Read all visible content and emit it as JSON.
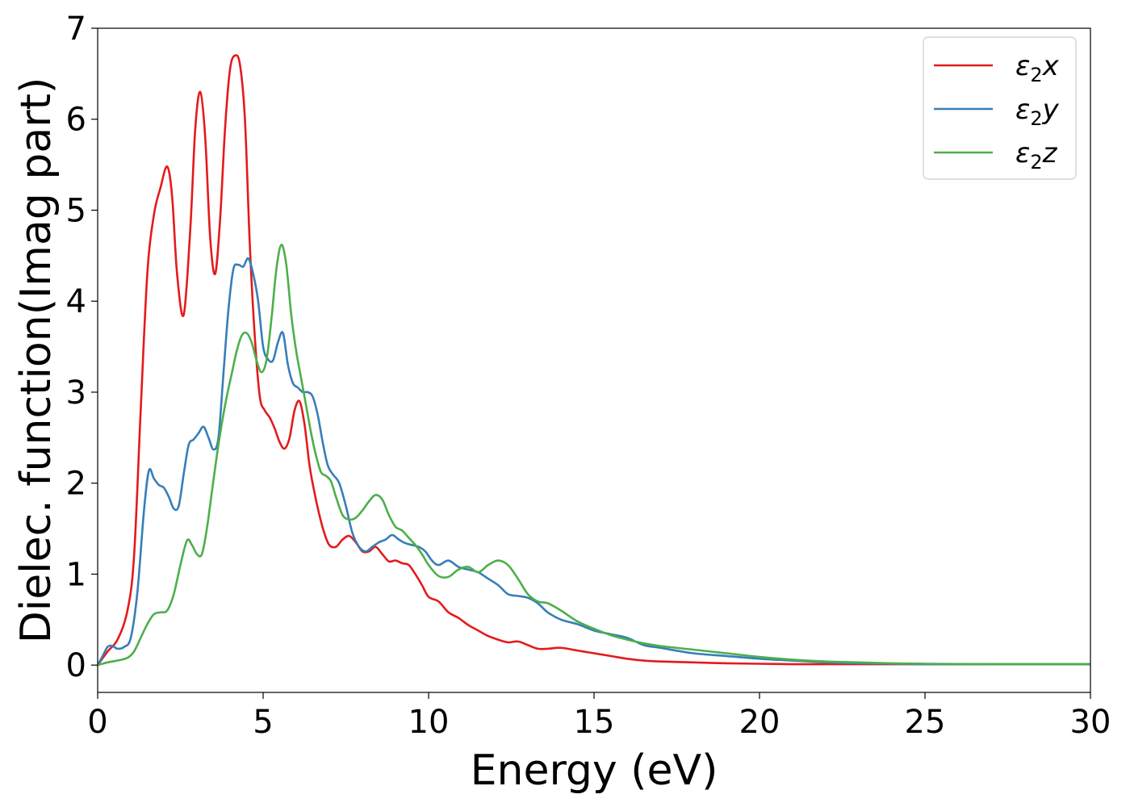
{
  "chart_data": {
    "type": "line",
    "xlabel": "Energy (eV)",
    "ylabel": "Dielec. function(Imag part)",
    "xlim": [
      0,
      30
    ],
    "ylim": [
      -0.3,
      7.0
    ],
    "xticks": [
      0,
      5,
      10,
      15,
      20,
      25,
      30
    ],
    "xtick_labels": [
      "0",
      "5",
      "10",
      "15",
      "20",
      "25",
      "30"
    ],
    "yticks": [
      0,
      1,
      2,
      3,
      4,
      5,
      6,
      7
    ],
    "ytick_labels": [
      "0",
      "1",
      "2",
      "3",
      "4",
      "5",
      "6",
      "7"
    ],
    "grid": false,
    "legend_position": "top-right",
    "series": [
      {
        "name": "ε2x",
        "legend": {
          "base": "ε",
          "sub": "2",
          "suffix": "x"
        },
        "color": "#e41a1c",
        "x": [
          0,
          0.3,
          0.6,
          0.9,
          1.1,
          1.3,
          1.5,
          1.7,
          1.9,
          2.1,
          2.25,
          2.4,
          2.6,
          2.8,
          2.95,
          3.1,
          3.25,
          3.4,
          3.55,
          3.7,
          3.85,
          4.0,
          4.15,
          4.3,
          4.45,
          4.6,
          4.75,
          4.9,
          5.05,
          5.2,
          5.35,
          5.5,
          5.65,
          5.8,
          5.95,
          6.1,
          6.25,
          6.4,
          6.55,
          6.7,
          6.85,
          7.0,
          7.2,
          7.4,
          7.6,
          7.8,
          8.0,
          8.2,
          8.4,
          8.6,
          8.8,
          9.0,
          9.2,
          9.4,
          9.6,
          9.8,
          10.0,
          10.3,
          10.6,
          10.9,
          11.2,
          11.5,
          11.8,
          12.1,
          12.4,
          12.7,
          13.0,
          13.3,
          13.6,
          14.0,
          14.5,
          15.0,
          15.5,
          16.0,
          16.5,
          17.0,
          18.0,
          19.0,
          20.0,
          21.0,
          22.0,
          23.0,
          24.0,
          25.0,
          27.0,
          30.0
        ],
        "y": [
          0,
          0.15,
          0.28,
          0.6,
          1.2,
          2.8,
          4.3,
          4.95,
          5.25,
          5.48,
          5.15,
          4.3,
          3.85,
          4.8,
          5.9,
          6.3,
          5.8,
          4.7,
          4.3,
          4.9,
          5.9,
          6.55,
          6.7,
          6.6,
          6.0,
          4.6,
          3.6,
          2.95,
          2.8,
          2.72,
          2.6,
          2.45,
          2.38,
          2.5,
          2.8,
          2.9,
          2.65,
          2.2,
          1.9,
          1.65,
          1.45,
          1.32,
          1.3,
          1.38,
          1.42,
          1.35,
          1.25,
          1.25,
          1.3,
          1.22,
          1.14,
          1.15,
          1.12,
          1.1,
          1.0,
          0.88,
          0.75,
          0.7,
          0.58,
          0.52,
          0.44,
          0.38,
          0.32,
          0.28,
          0.25,
          0.26,
          0.22,
          0.18,
          0.18,
          0.19,
          0.16,
          0.13,
          0.1,
          0.07,
          0.05,
          0.04,
          0.03,
          0.02,
          0.015,
          0.01,
          0.01,
          0.01,
          0.01,
          0.01,
          0.01,
          0.01
        ]
      },
      {
        "name": "ε2y",
        "legend": {
          "base": "ε",
          "sub": "2",
          "suffix": "y"
        },
        "color": "#377eb8",
        "x": [
          0,
          0.15,
          0.3,
          0.45,
          0.6,
          0.8,
          1.0,
          1.2,
          1.4,
          1.55,
          1.7,
          1.85,
          2.0,
          2.15,
          2.3,
          2.45,
          2.6,
          2.75,
          2.9,
          3.05,
          3.2,
          3.35,
          3.5,
          3.65,
          3.8,
          3.95,
          4.1,
          4.25,
          4.4,
          4.55,
          4.7,
          4.85,
          5.0,
          5.15,
          5.3,
          5.45,
          5.6,
          5.75,
          5.9,
          6.05,
          6.2,
          6.35,
          6.5,
          6.65,
          6.8,
          6.95,
          7.1,
          7.3,
          7.5,
          7.7,
          7.9,
          8.1,
          8.3,
          8.5,
          8.7,
          8.9,
          9.1,
          9.3,
          9.5,
          9.7,
          9.9,
          10.1,
          10.3,
          10.6,
          10.9,
          11.2,
          11.5,
          11.8,
          12.1,
          12.4,
          12.7,
          13.0,
          13.3,
          13.6,
          14.0,
          14.5,
          15.0,
          15.5,
          16.0,
          16.5,
          17.0,
          18.0,
          19.0,
          20.0,
          21.0,
          22.0,
          23.0,
          24.0,
          25.0,
          27.0,
          30.0
        ],
        "y": [
          0,
          0.1,
          0.2,
          0.21,
          0.18,
          0.2,
          0.3,
          0.8,
          1.7,
          2.14,
          2.05,
          1.98,
          1.95,
          1.85,
          1.72,
          1.75,
          2.1,
          2.42,
          2.48,
          2.55,
          2.62,
          2.5,
          2.37,
          2.5,
          3.2,
          3.9,
          4.35,
          4.4,
          4.38,
          4.47,
          4.3,
          4.0,
          3.5,
          3.36,
          3.35,
          3.55,
          3.65,
          3.3,
          3.1,
          3.05,
          3.0,
          3.0,
          2.95,
          2.75,
          2.45,
          2.2,
          2.1,
          2.0,
          1.75,
          1.45,
          1.3,
          1.25,
          1.3,
          1.35,
          1.38,
          1.43,
          1.38,
          1.34,
          1.32,
          1.3,
          1.25,
          1.15,
          1.1,
          1.15,
          1.08,
          1.05,
          1.02,
          0.95,
          0.88,
          0.78,
          0.76,
          0.74,
          0.68,
          0.58,
          0.5,
          0.45,
          0.38,
          0.34,
          0.3,
          0.22,
          0.19,
          0.13,
          0.1,
          0.07,
          0.05,
          0.03,
          0.02,
          0.015,
          0.01,
          0.01,
          0.01
        ]
      },
      {
        "name": "ε2z",
        "legend": {
          "base": "ε",
          "sub": "2",
          "suffix": "z"
        },
        "color": "#4daf4a",
        "x": [
          0,
          0.3,
          0.6,
          0.9,
          1.1,
          1.3,
          1.5,
          1.7,
          1.9,
          2.1,
          2.3,
          2.5,
          2.7,
          2.85,
          3.0,
          3.15,
          3.3,
          3.45,
          3.6,
          3.75,
          3.9,
          4.05,
          4.2,
          4.35,
          4.5,
          4.65,
          4.8,
          4.95,
          5.1,
          5.25,
          5.4,
          5.55,
          5.7,
          5.85,
          6.0,
          6.15,
          6.3,
          6.45,
          6.6,
          6.75,
          6.9,
          7.05,
          7.2,
          7.4,
          7.6,
          7.8,
          8.0,
          8.2,
          8.4,
          8.6,
          8.8,
          9.0,
          9.2,
          9.4,
          9.6,
          9.8,
          10.0,
          10.3,
          10.6,
          10.9,
          11.2,
          11.5,
          11.8,
          12.1,
          12.4,
          12.7,
          13.0,
          13.3,
          13.6,
          14.0,
          14.5,
          15.0,
          15.5,
          16.0,
          16.5,
          17.0,
          18.0,
          19.0,
          20.0,
          21.0,
          22.0,
          23.0,
          24.0,
          25.0,
          27.0,
          30.0
        ],
        "y": [
          0,
          0.03,
          0.05,
          0.08,
          0.15,
          0.3,
          0.45,
          0.56,
          0.58,
          0.6,
          0.78,
          1.1,
          1.37,
          1.32,
          1.22,
          1.22,
          1.5,
          1.9,
          2.3,
          2.65,
          2.95,
          3.2,
          3.45,
          3.62,
          3.65,
          3.55,
          3.35,
          3.22,
          3.35,
          3.8,
          4.35,
          4.62,
          4.4,
          3.85,
          3.45,
          3.15,
          2.85,
          2.55,
          2.3,
          2.12,
          2.08,
          2.02,
          1.85,
          1.65,
          1.6,
          1.62,
          1.7,
          1.8,
          1.87,
          1.82,
          1.65,
          1.52,
          1.48,
          1.4,
          1.32,
          1.22,
          1.1,
          0.98,
          0.97,
          1.05,
          1.08,
          1.02,
          1.1,
          1.15,
          1.1,
          0.95,
          0.78,
          0.7,
          0.68,
          0.6,
          0.48,
          0.4,
          0.33,
          0.28,
          0.24,
          0.21,
          0.17,
          0.13,
          0.09,
          0.06,
          0.04,
          0.03,
          0.02,
          0.015,
          0.01,
          0.01
        ]
      }
    ]
  }
}
